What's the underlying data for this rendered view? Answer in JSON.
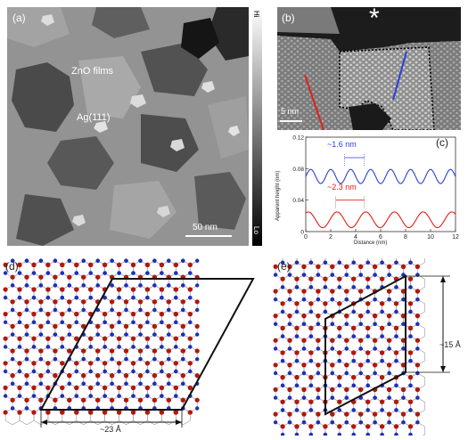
{
  "panel_a": {
    "label": "(a)",
    "film_label": "ZnO films",
    "substrate_label": "Ag(111)",
    "scale_bar": "50 nm",
    "colorbar_hi": "Hi",
    "colorbar_lo": "Lo"
  },
  "panel_b": {
    "label": "(b)",
    "scale_bar": "5 nm",
    "star_mark": "*"
  },
  "panel_c": {
    "label": "(c)",
    "period_blue": "~1.6 nm",
    "period_red": "~2.3 nm"
  },
  "panel_d": {
    "label": "(d)",
    "dimension": "~23 Å"
  },
  "panel_e": {
    "label": "(e)",
    "dimension": "~15 Å"
  },
  "colors": {
    "blue_profile": "#2b3fd6",
    "red_profile": "#e0201a",
    "oxygen_atom": "#b01810",
    "zinc_atom": "#1f2fb8"
  },
  "chart_data": {
    "type": "line",
    "xlabel": "Distance (nm)",
    "ylabel": "Apparent height (nm)",
    "xlim": [
      0,
      12
    ],
    "ylim": [
      0,
      0.12
    ],
    "xticks": [
      "0",
      "2",
      "4",
      "6",
      "8",
      "10",
      "12"
    ],
    "yticks": [
      "0",
      "0.04",
      "0.08",
      "0.12"
    ],
    "series": [
      {
        "color": "#2b3fd6",
        "offset": 0.07,
        "amplitude": 0.009,
        "period_nm": 1.6
      },
      {
        "color": "#e0201a",
        "offset": 0.015,
        "amplitude": 0.01,
        "period_nm": 2.3
      }
    ]
  }
}
